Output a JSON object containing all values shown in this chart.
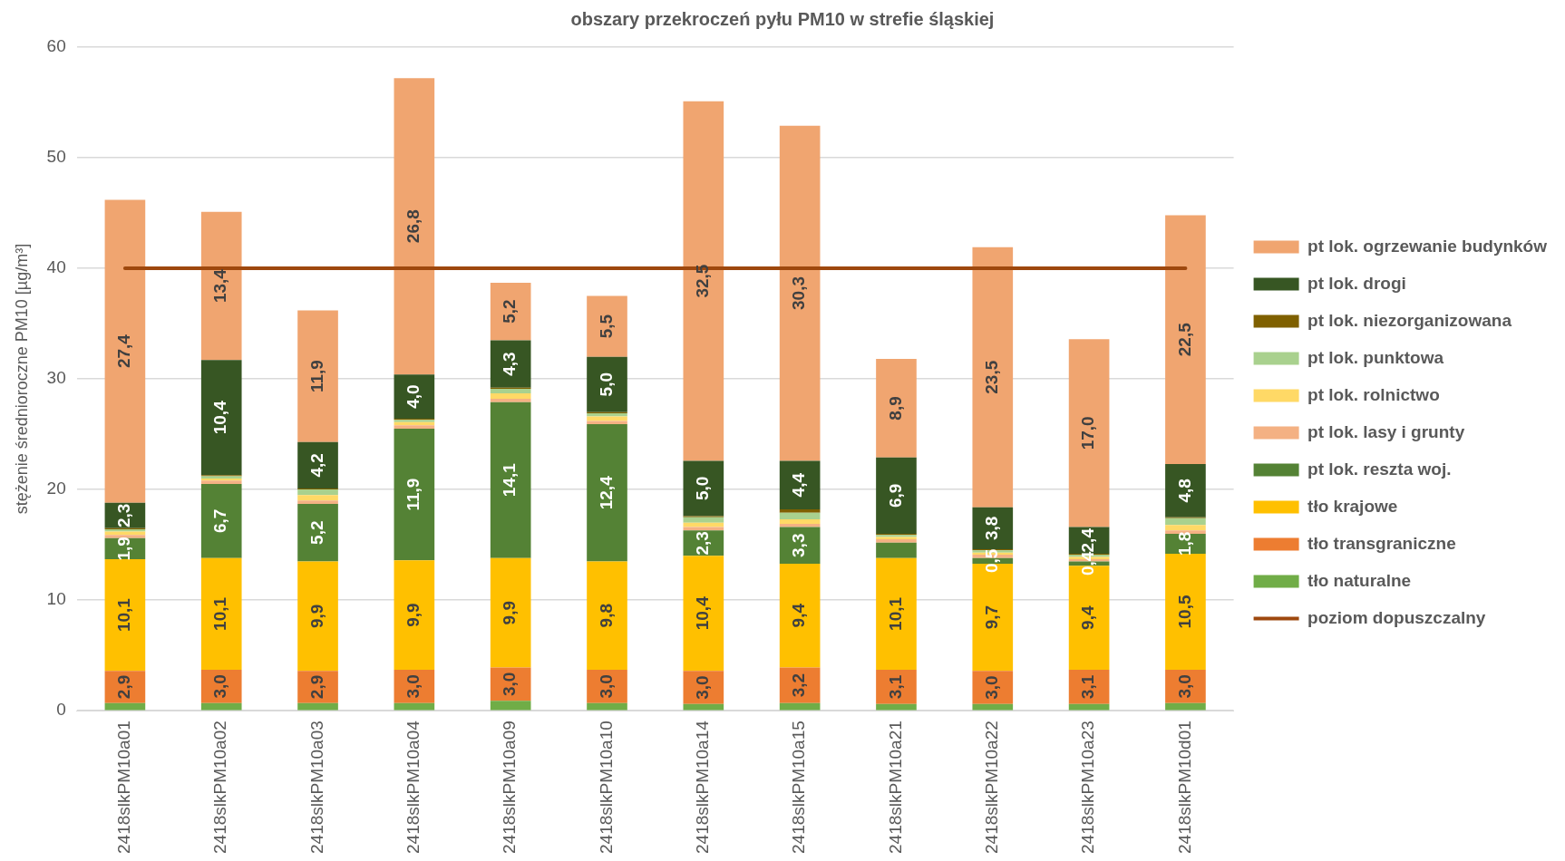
{
  "chart_data": {
    "type": "bar",
    "stacked": true,
    "title": "obszary przekroczeń pyłu PM10 w strefie śląskiej",
    "ylabel": "stężenie średnioroczne PM10 [µg/m³]",
    "categories": [
      "2418slkPM10a01",
      "2418slkPM10a02",
      "2418slkPM10a03",
      "2418slkPM10a04",
      "2418slkPM10a09",
      "2418slkPM10a10",
      "2418slkPM10a14",
      "2418slkPM10a15",
      "2418slkPM10a21",
      "2418slkPM10a22",
      "2418slkPM10a23",
      "2418slkPM10d01"
    ],
    "ylim": [
      0,
      60
    ],
    "yticks": [
      0,
      10,
      20,
      30,
      40,
      50,
      60
    ],
    "grid": "y",
    "legend": "right",
    "series": [
      {
        "name": "tło naturalne",
        "color": "#70ad47",
        "values": [
          0.7,
          0.7,
          0.7,
          0.7,
          0.9,
          0.7,
          0.6,
          0.7,
          0.6,
          0.6,
          0.6,
          0.7
        ]
      },
      {
        "name": "tło transgraniczne",
        "color": "#ed7d31",
        "values": [
          2.9,
          3.0,
          2.9,
          3.0,
          3.0,
          3.0,
          3.0,
          3.2,
          3.1,
          3.0,
          3.1,
          3.0
        ],
        "value_labels": [
          "2,9",
          "3,0",
          "2,9",
          "3,0",
          "3,0",
          "3,0",
          "3,0",
          "3,2",
          "3,1",
          "3,0",
          "3,1",
          "3,0"
        ]
      },
      {
        "name": "tło krajowe",
        "color": "#ffc000",
        "values": [
          10.1,
          10.1,
          9.9,
          9.9,
          9.9,
          9.8,
          10.4,
          9.4,
          10.1,
          9.7,
          9.4,
          10.5
        ],
        "value_labels": [
          "10,1",
          "10,1",
          "9,9",
          "9,9",
          "9,9",
          "9,8",
          "10,4",
          "9,4",
          "10,1",
          "9,7",
          "9,4",
          "10,5"
        ]
      },
      {
        "name": "pt lok. reszta woj.",
        "color": "#548235",
        "values": [
          1.9,
          6.7,
          5.2,
          11.9,
          14.1,
          12.4,
          2.3,
          3.3,
          1.4,
          0.5,
          0.4,
          1.8
        ],
        "value_labels": [
          "1,9",
          "6,7",
          "5,2",
          "11,9",
          "14,1",
          "12,4",
          "2,3",
          "3,3",
          null,
          "0,5",
          "0,4",
          "1,8"
        ]
      },
      {
        "name": "pt lok. lasy i grunty",
        "color": "#f4b183",
        "values": [
          0.3,
          0.3,
          0.3,
          0.3,
          0.3,
          0.3,
          0.3,
          0.3,
          0.3,
          0.3,
          0.2,
          0.3
        ]
      },
      {
        "name": "pt lok. rolnictwo",
        "color": "#ffd966",
        "values": [
          0.3,
          0.2,
          0.5,
          0.3,
          0.5,
          0.4,
          0.4,
          0.4,
          0.2,
          0.2,
          0.2,
          0.5
        ]
      },
      {
        "name": "pt lok. punktowa",
        "color": "#a9d18e",
        "values": [
          0.2,
          0.2,
          0.5,
          0.2,
          0.4,
          0.3,
          0.5,
          0.6,
          0.2,
          0.2,
          0.2,
          0.6
        ]
      },
      {
        "name": "pt lok. niezorganizowana",
        "color": "#7f6000",
        "values": [
          0.1,
          0.1,
          0.1,
          0.1,
          0.1,
          0.1,
          0.1,
          0.3,
          0.1,
          0.1,
          0.1,
          0.1
        ]
      },
      {
        "name": "pt lok. drogi",
        "color": "#375623",
        "values": [
          2.3,
          10.4,
          4.2,
          4.0,
          4.3,
          5.0,
          5.0,
          4.4,
          6.9,
          3.8,
          2.4,
          4.8
        ],
        "value_labels": [
          "2,3",
          "10,4",
          "4,2",
          "4,0",
          "4,3",
          "5,0",
          "5,0",
          "4,4",
          "6,9",
          "3,8",
          "2,4",
          "4,8"
        ]
      },
      {
        "name": "pt lok. ogrzewanie budynków",
        "color": "#f0a570",
        "values": [
          27.4,
          13.4,
          11.9,
          26.8,
          5.2,
          5.5,
          32.5,
          30.3,
          8.9,
          23.5,
          17.0,
          22.5
        ],
        "value_labels": [
          "27,4",
          "13,4",
          "11,9",
          "26,8",
          "5,2",
          "5,5",
          "32,5",
          "30,3",
          "8,9",
          "23,5",
          "17,0",
          "22,5"
        ]
      },
      {
        "name": "poziom dopuszczalny",
        "type": "line",
        "color": "#9e480e",
        "values": [
          40,
          40,
          40,
          40,
          40,
          40,
          40,
          40,
          40,
          40,
          40,
          40
        ]
      }
    ]
  }
}
